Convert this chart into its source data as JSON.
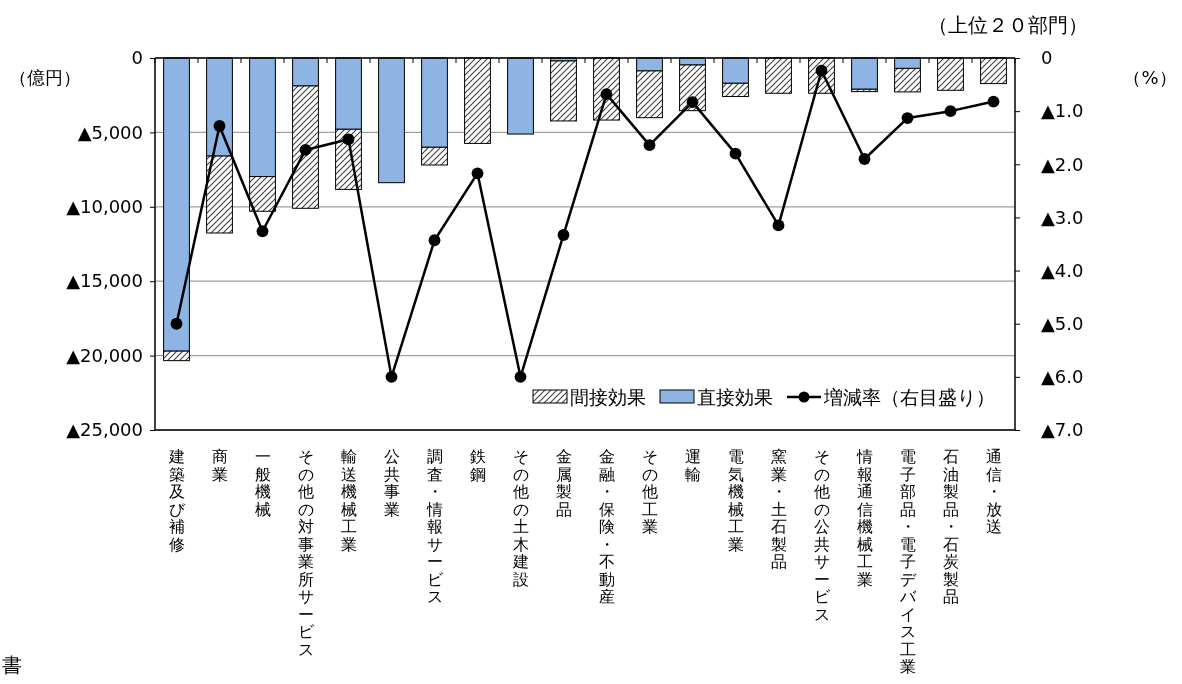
{
  "chart_data": {
    "type": "bar",
    "stacked": true,
    "subtitle": "（上位２０部門）",
    "ylabel": "（億円）",
    "y2label": "（%）",
    "categories": [
      "建築及び補修",
      "商業",
      "一般機械",
      "その他の対事業所サービス",
      "輸送機械工業",
      "公共事業",
      "調査・情報サービス",
      "鉄鋼",
      "その他の土木建設",
      "金属製品",
      "金融・保険・不動産",
      "その他工業",
      "運輸",
      "電気機械工業",
      "窯業・土石製品",
      "その他の公共サービス",
      "情報通信機械工業",
      "電子部品・電子デバイス工業",
      "石油製品・石炭製品",
      "通信・放送"
    ],
    "series": [
      {
        "name": "直接効果",
        "color": "#8db4e2",
        "values": [
          -19700,
          -6590,
          -7970,
          -1880,
          -4790,
          -8380,
          -6000,
          0,
          -5110,
          -200,
          0,
          -870,
          -470,
          -1700,
          0,
          0,
          -2100,
          -700,
          0,
          0
        ]
      },
      {
        "name": "間接効果",
        "color": "#000000",
        "values": [
          -640,
          -5170,
          -2330,
          -8220,
          -4040,
          0,
          -1190,
          -5740,
          0,
          -4030,
          -4170,
          -3140,
          -3070,
          -890,
          -2370,
          -2370,
          -160,
          -1580,
          -2170,
          -1720
        ]
      },
      {
        "name": "増減率（右目盛り）",
        "type": "line",
        "axis": "y2",
        "color": "#000000",
        "values": [
          -5.0,
          -1.28,
          -3.26,
          -1.73,
          -1.53,
          -6.0,
          -3.43,
          -2.17,
          -6.0,
          -3.33,
          -0.68,
          -1.64,
          -0.83,
          -1.8,
          -3.15,
          -0.24,
          -1.9,
          -1.13,
          -1.0,
          -0.82
        ]
      }
    ],
    "ylim": [
      -25000,
      0
    ],
    "yticks": [
      {
        "value": 0,
        "label": "0"
      },
      {
        "value": -5000,
        "label": "▲5,000"
      },
      {
        "value": -10000,
        "label": "▲10,000"
      },
      {
        "value": -15000,
        "label": "▲15,000"
      },
      {
        "value": -20000,
        "label": "▲20,000"
      },
      {
        "value": -25000,
        "label": "▲25,000"
      }
    ],
    "y2lim": [
      -7,
      0
    ],
    "y2ticks": [
      {
        "value": 0,
        "label": "0"
      },
      {
        "value": -1,
        "label": "▲1.0"
      },
      {
        "value": -2,
        "label": "▲2.0"
      },
      {
        "value": -3,
        "label": "▲3.0"
      },
      {
        "value": -4,
        "label": "▲4.0"
      },
      {
        "value": -5,
        "label": "▲5.0"
      },
      {
        "value": -6,
        "label": "▲6.0"
      },
      {
        "value": -7,
        "label": "▲7.0"
      }
    ],
    "grid": "y",
    "legend": "bottom right",
    "marker": "circle",
    "line_style": "solid",
    "annotations": [
      "書"
    ]
  }
}
